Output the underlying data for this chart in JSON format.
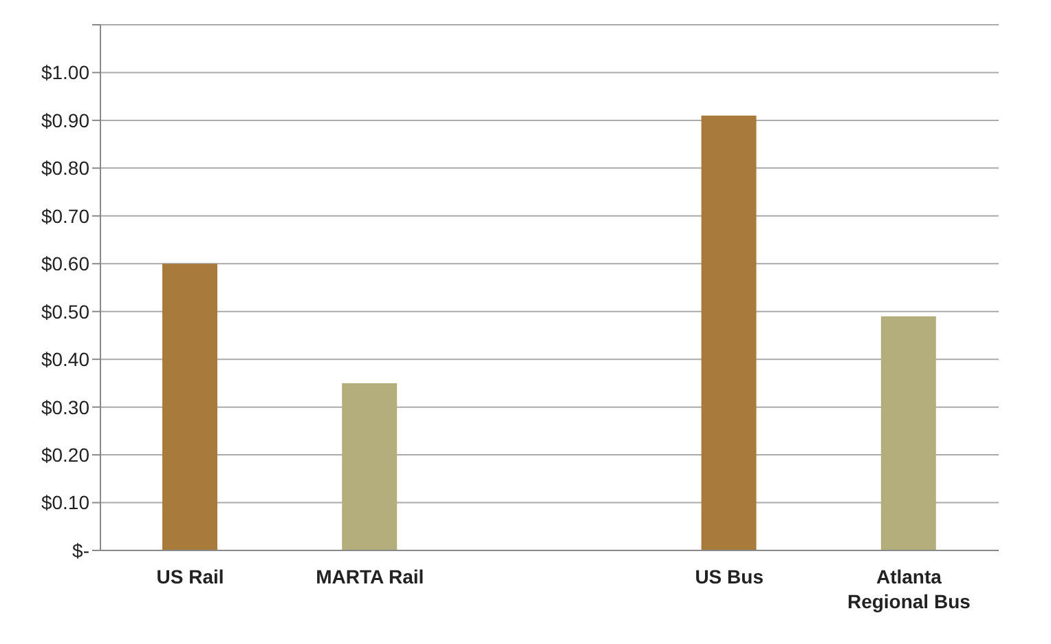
{
  "chart_data": {
    "type": "bar",
    "categories": [
      "US Rail",
      "MARTA Rail",
      null,
      "US Bus",
      "Atlanta Regional Bus"
    ],
    "values": [
      0.6,
      0.35,
      null,
      0.91,
      0.49
    ],
    "colors": [
      "#a87b3c",
      "#b3ae7c",
      null,
      "#a87b3c",
      "#b3ae7c"
    ],
    "ylim": [
      0,
      1.1
    ],
    "yticks": [
      {
        "value": 0,
        "label": "$-"
      },
      {
        "value": 0.1,
        "label": "$0.10"
      },
      {
        "value": 0.2,
        "label": "$0.20"
      },
      {
        "value": 0.3,
        "label": "$0.30"
      },
      {
        "value": 0.4,
        "label": "$0.40"
      },
      {
        "value": 0.5,
        "label": "$0.50"
      },
      {
        "value": 0.6,
        "label": "$0.60"
      },
      {
        "value": 0.7,
        "label": "$0.70"
      },
      {
        "value": 0.8,
        "label": "$0.80"
      },
      {
        "value": 0.9,
        "label": "$0.90"
      },
      {
        "value": 1,
        "label": "$1.00"
      },
      {
        "value": 1.1,
        "label": null
      }
    ],
    "grid": "y"
  }
}
